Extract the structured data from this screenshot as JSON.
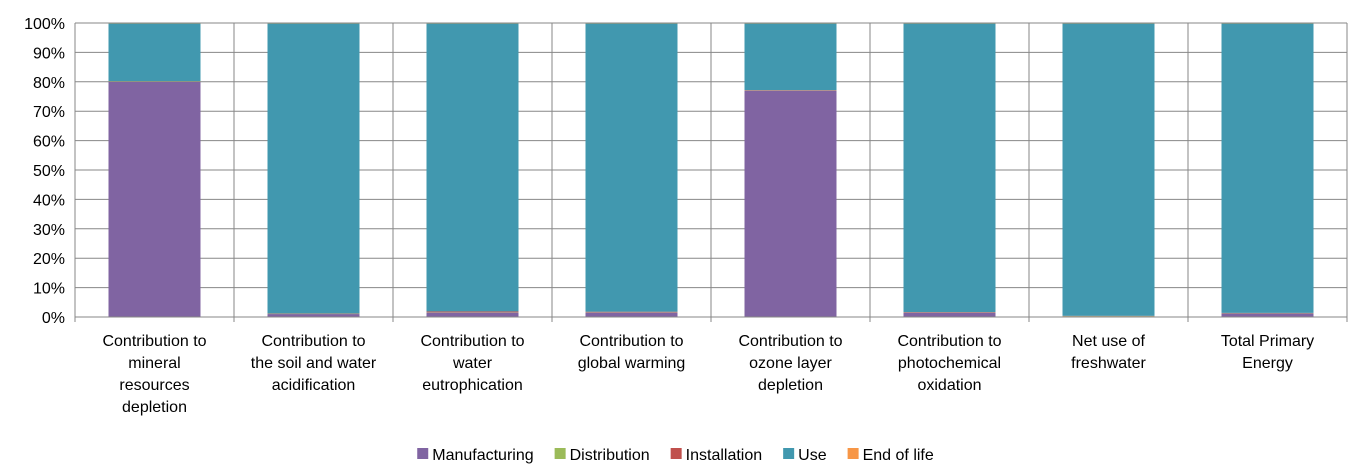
{
  "chart_data": {
    "type": "bar",
    "stacked": true,
    "title": "",
    "xlabel": "",
    "ylabel": "",
    "ylim": [
      0,
      100
    ],
    "ytick_step": 10,
    "yticks": [
      "0%",
      "10%",
      "20%",
      "30%",
      "40%",
      "50%",
      "60%",
      "70%",
      "80%",
      "90%",
      "100%"
    ],
    "grid": true,
    "legend_position": "bottom",
    "categories": [
      "Contribution to mineral resources depletion",
      "Contribution to the soil and water acidification",
      "Contribution to water eutrophication",
      "Contribution to global warming",
      "Contribution to ozone layer depletion",
      "Contribution to photochemical oxidation",
      "Net use of freshwater",
      "Total Primary Energy"
    ],
    "category_lines": [
      [
        "Contribution to",
        "mineral",
        "resources",
        "depletion"
      ],
      [
        "Contribution to",
        "the soil and water",
        "acidification"
      ],
      [
        "Contribution to",
        "water",
        "eutrophication"
      ],
      [
        "Contribution to",
        "global warming"
      ],
      [
        "Contribution to",
        "ozone layer",
        "depletion"
      ],
      [
        "Contribution to",
        "photochemical",
        "oxidation"
      ],
      [
        "Net use of",
        "freshwater"
      ],
      [
        "Total Primary",
        "Energy"
      ]
    ],
    "series": [
      {
        "name": "Manufacturing",
        "color": "#8064A2",
        "values": [
          80,
          1,
          1.5,
          1.5,
          77,
          1.5,
          0.2,
          1.2
        ]
      },
      {
        "name": "Distribution",
        "color": "#9BBB59",
        "values": [
          0.1,
          0.1,
          0.1,
          0.1,
          0.1,
          0.1,
          0.1,
          0.1
        ]
      },
      {
        "name": "Installation",
        "color": "#C0504D",
        "values": [
          0.1,
          0.1,
          0.3,
          0.2,
          0.1,
          0.1,
          0.1,
          0.1
        ]
      },
      {
        "name": "Use",
        "color": "#4198AF",
        "values": [
          19.7,
          98.7,
          98.0,
          98.1,
          22.7,
          98.2,
          99.5,
          98.5
        ]
      },
      {
        "name": "End of life",
        "color": "#F79646",
        "values": [
          0.1,
          0.1,
          0.1,
          0.1,
          0.1,
          0.1,
          0.1,
          0.1
        ]
      }
    ]
  }
}
